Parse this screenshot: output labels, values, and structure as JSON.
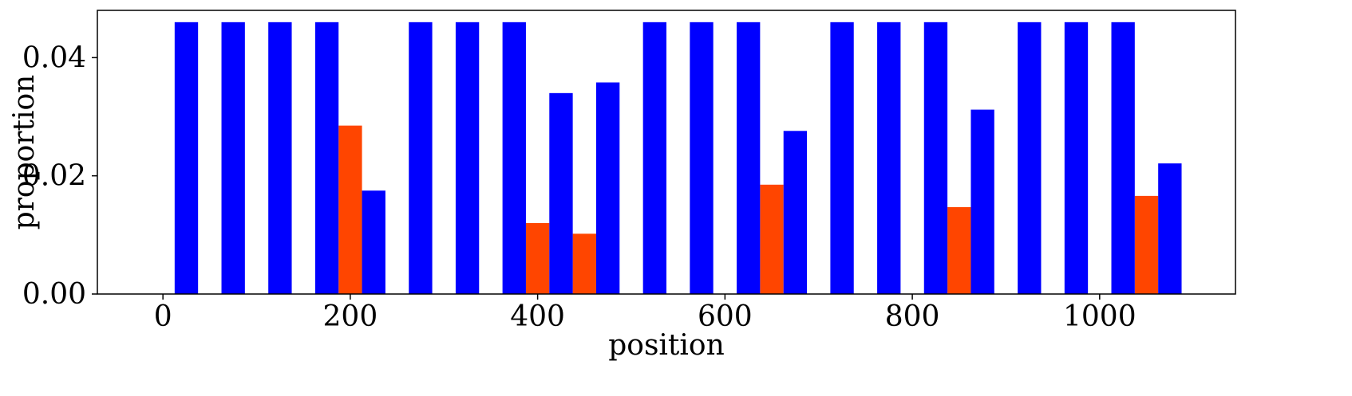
{
  "chart_data": {
    "type": "bar",
    "xlabel": "position",
    "ylabel": "proportion",
    "xlim": [
      -70,
      1145
    ],
    "ylim": [
      0,
      0.048
    ],
    "xticks": [
      0,
      200,
      400,
      600,
      800,
      1000
    ],
    "yticks": [
      0.0,
      0.02,
      0.04
    ],
    "xtick_labels": [
      "0",
      "200",
      "400",
      "600",
      "800",
      "1000"
    ],
    "ytick_labels": [
      "0.00",
      "0.02",
      "0.04"
    ],
    "bar_width": 25,
    "grid": false,
    "series": [
      {
        "color": "#ff4500",
        "points": [
          {
            "x": 200,
            "y": 0.0285
          },
          {
            "x": 400,
            "y": 0.012
          },
          {
            "x": 450,
            "y": 0.0102
          },
          {
            "x": 650,
            "y": 0.0185
          },
          {
            "x": 850,
            "y": 0.0147
          },
          {
            "x": 1050,
            "y": 0.0166
          }
        ]
      },
      {
        "color": "#0000ff",
        "points": [
          {
            "x": 25,
            "y": 0.046
          },
          {
            "x": 75,
            "y": 0.046
          },
          {
            "x": 125,
            "y": 0.046
          },
          {
            "x": 175,
            "y": 0.046
          },
          {
            "x": 225,
            "y": 0.0175
          },
          {
            "x": 275,
            "y": 0.046
          },
          {
            "x": 325,
            "y": 0.046
          },
          {
            "x": 375,
            "y": 0.046
          },
          {
            "x": 425,
            "y": 0.034
          },
          {
            "x": 475,
            "y": 0.0358
          },
          {
            "x": 525,
            "y": 0.046
          },
          {
            "x": 575,
            "y": 0.046
          },
          {
            "x": 625,
            "y": 0.046
          },
          {
            "x": 675,
            "y": 0.0276
          },
          {
            "x": 725,
            "y": 0.046
          },
          {
            "x": 775,
            "y": 0.046
          },
          {
            "x": 825,
            "y": 0.046
          },
          {
            "x": 875,
            "y": 0.0312
          },
          {
            "x": 925,
            "y": 0.046
          },
          {
            "x": 975,
            "y": 0.046
          },
          {
            "x": 1025,
            "y": 0.046
          },
          {
            "x": 1075,
            "y": 0.0221
          }
        ]
      }
    ]
  }
}
